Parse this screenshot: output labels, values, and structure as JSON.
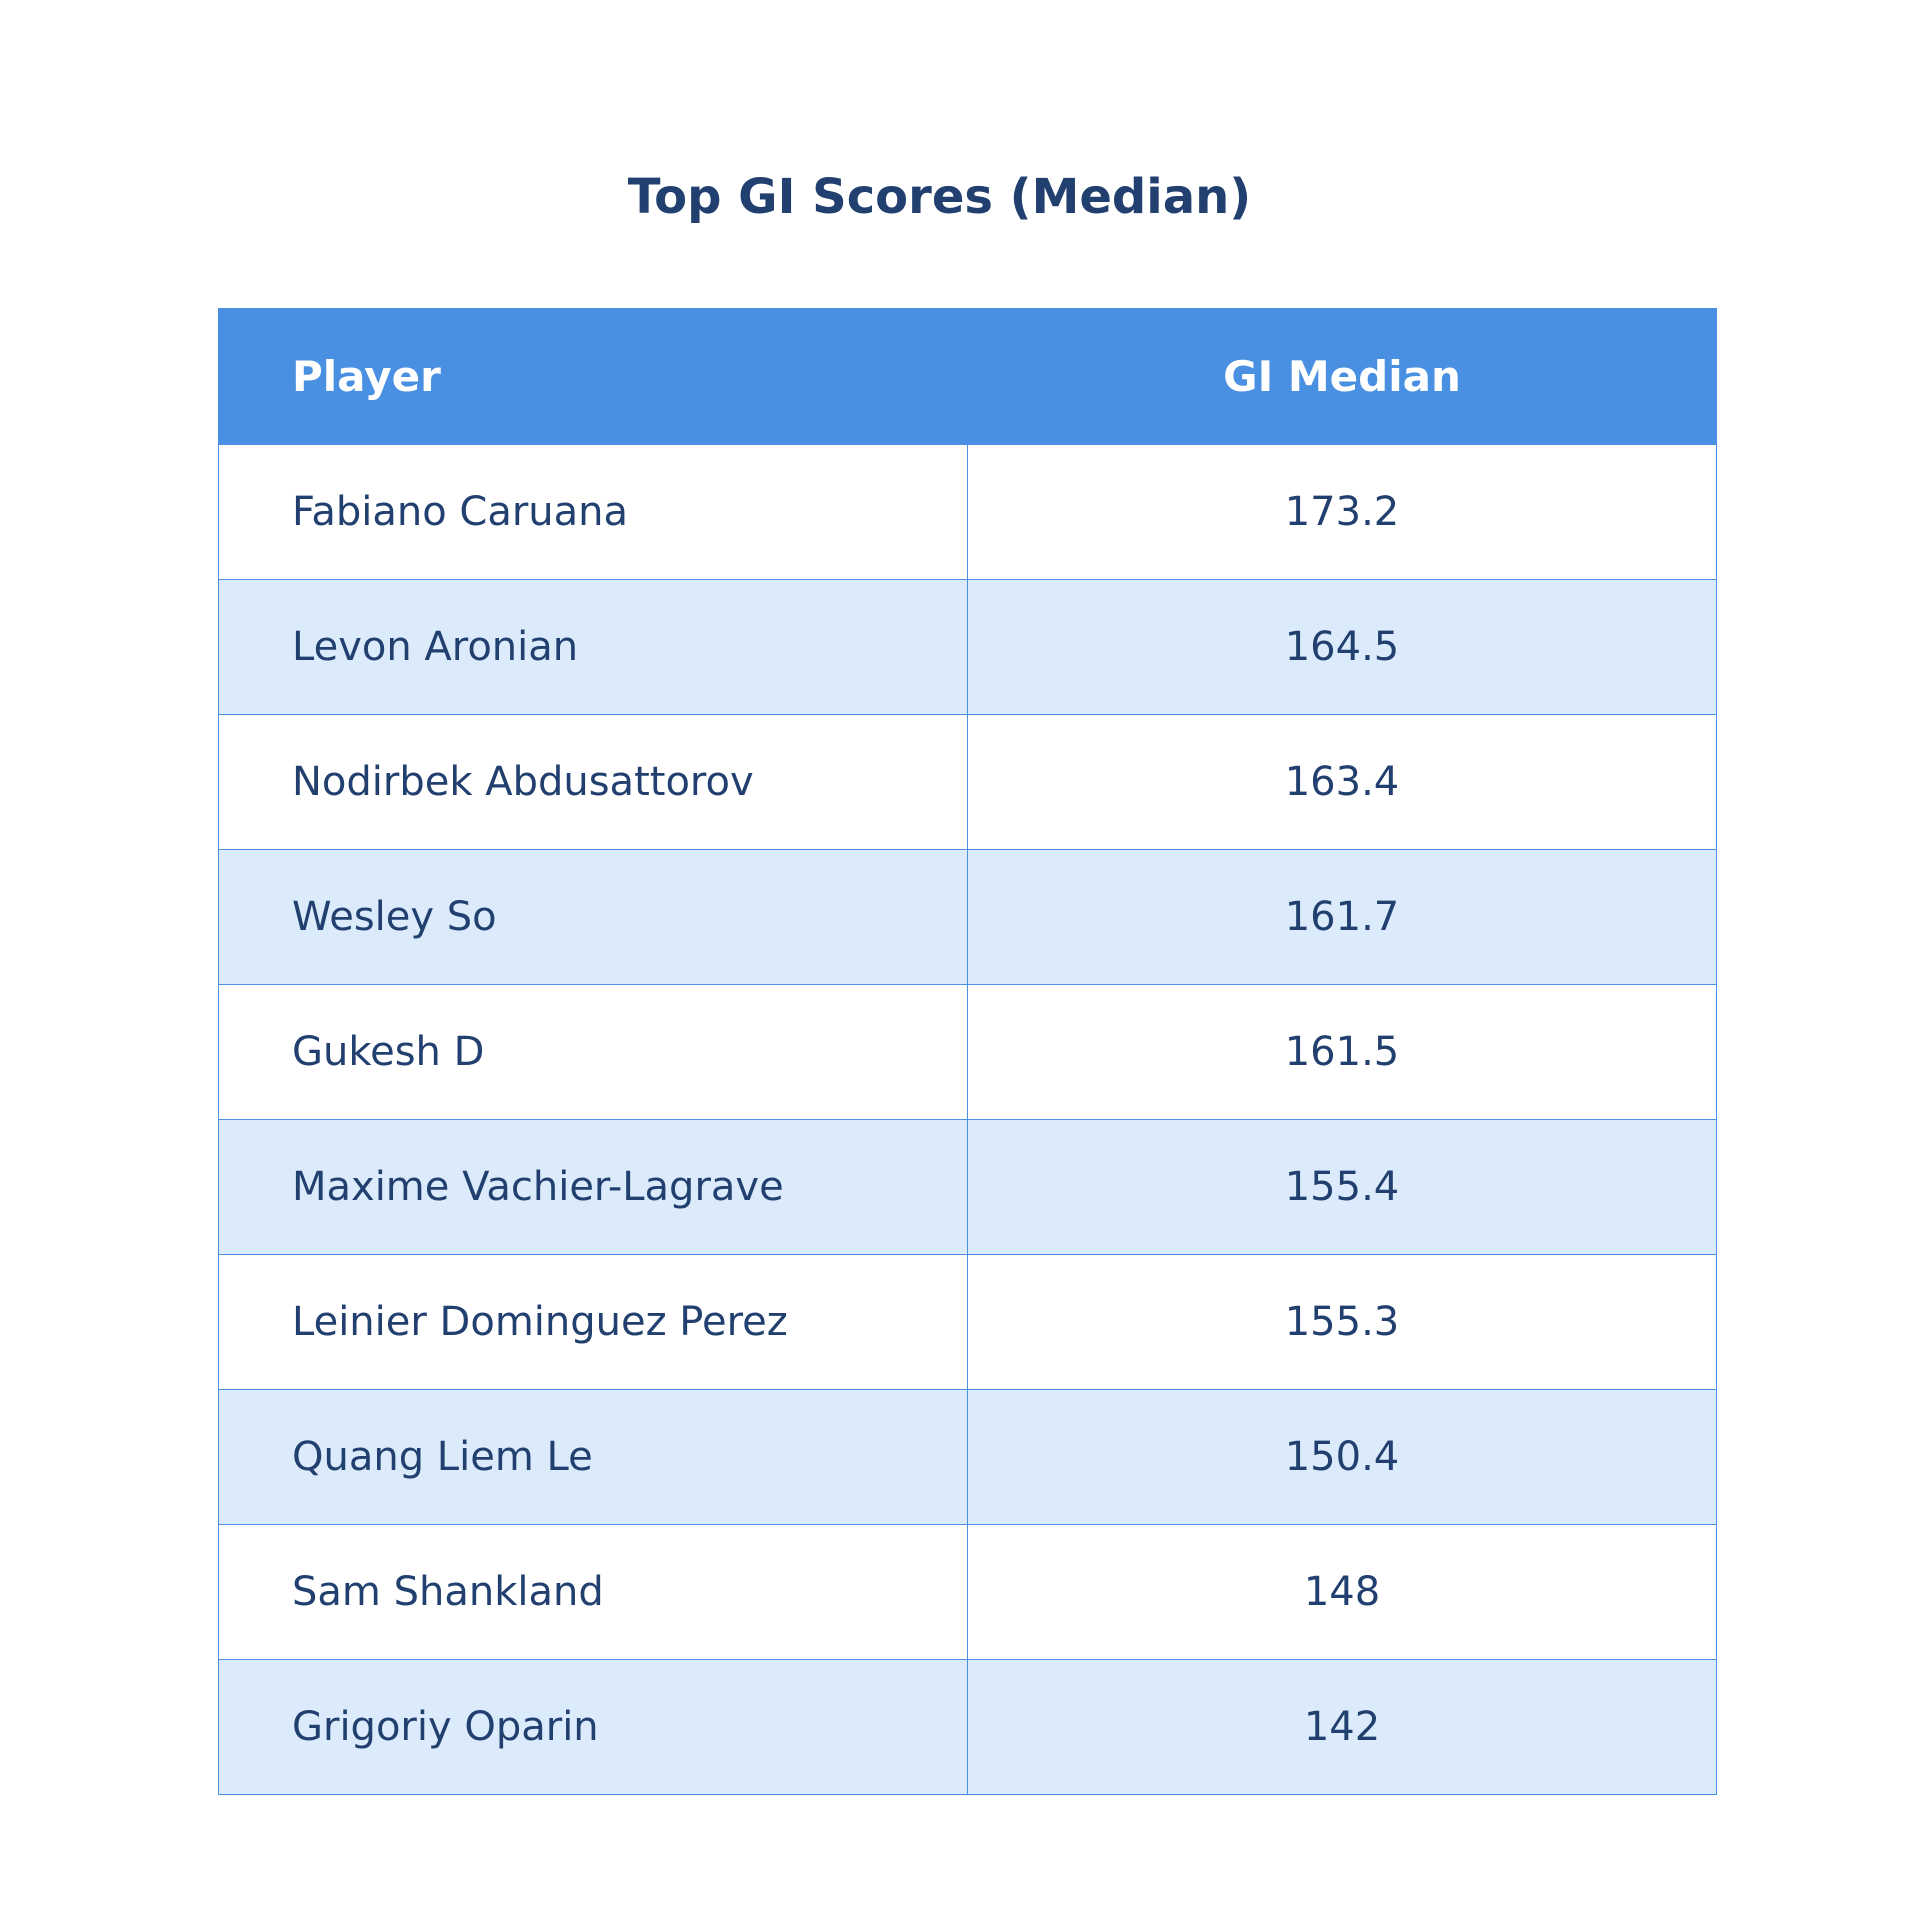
{
  "chart_data": {
    "type": "table",
    "title": "Top GI Scores (Median)",
    "columns": [
      "Player",
      "GI Median"
    ],
    "rows": [
      {
        "player": "Fabiano Caruana",
        "gi_median": "173.2"
      },
      {
        "player": "Levon Aronian",
        "gi_median": "164.5"
      },
      {
        "player": "Nodirbek Abdusattorov",
        "gi_median": "163.4"
      },
      {
        "player": "Wesley So",
        "gi_median": "161.7"
      },
      {
        "player": "Gukesh D",
        "gi_median": "161.5"
      },
      {
        "player": "Maxime Vachier-Lagrave",
        "gi_median": "155.4"
      },
      {
        "player": "Leinier Dominguez Perez",
        "gi_median": "155.3"
      },
      {
        "player": "Quang Liem Le",
        "gi_median": "150.4"
      },
      {
        "player": "Sam Shankland",
        "gi_median": "148"
      },
      {
        "player": "Grigoriy Oparin",
        "gi_median": "142"
      }
    ],
    "colors": {
      "header_bg": "#4a90e2",
      "header_text": "#ffffff",
      "row_alt_bg": "#dcebfc",
      "text": "#22406f",
      "border": "#4a90e2"
    }
  }
}
